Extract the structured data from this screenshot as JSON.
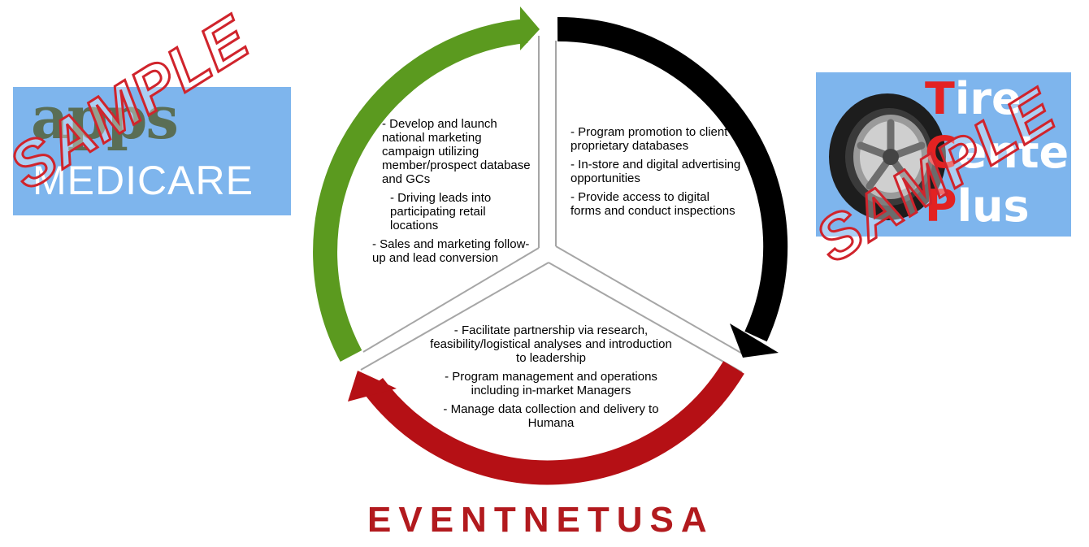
{
  "logos": {
    "left": {
      "line1": "apps",
      "line2": "MEDICARE",
      "watermark": "SAMPLE"
    },
    "right": {
      "letters": [
        "T",
        "C",
        "P"
      ],
      "rests": [
        "ire",
        "enter",
        "lus"
      ],
      "watermark": "SAMPLE"
    }
  },
  "cycle": {
    "colors": {
      "green": "#5b9a1f",
      "black": "#000000",
      "red": "#b51015",
      "divider": "#a6a6a6"
    },
    "left_panel": [
      "- Develop and launch national marketing campaign utilizing member/prospect database and GCs",
      "- Driving leads into participating retail locations",
      "- Sales and marketing follow-up and lead conversion"
    ],
    "right_panel": [
      "- Program promotion to client proprietary databases",
      "- In-store and digital advertising opportunities",
      "- Provide access to digital forms and conduct inspections"
    ],
    "bottom_panel": [
      "- Facilitate partnership via research, feasibility/logistical analyses and introduction to leadership",
      "- Program management and operations including in-market Managers",
      "- Manage data collection and delivery to Humana"
    ]
  },
  "brand": {
    "text": "EVENTNETUSA",
    "color": "#b21a1e"
  }
}
